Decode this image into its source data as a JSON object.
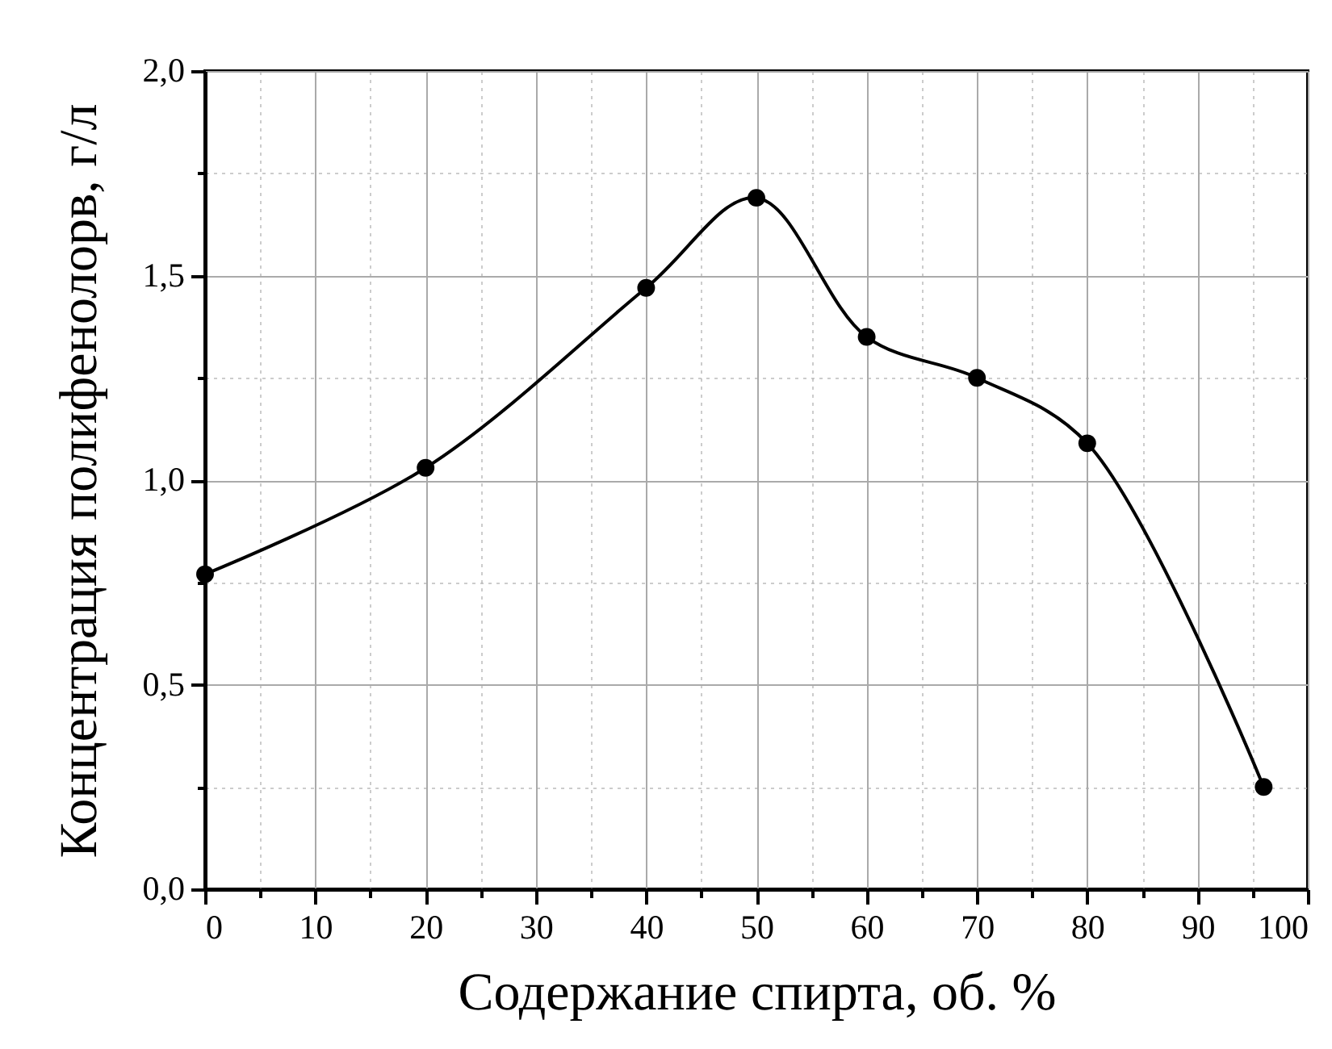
{
  "chart_data": {
    "type": "line",
    "xlabel": "Содержание спирта, об. %",
    "ylabel": "Концентрация полифенолорв, г/л",
    "x": [
      0,
      20,
      40,
      50,
      60,
      70,
      80,
      96
    ],
    "series": [
      {
        "color": "#000000",
        "values": [
          0.77,
          1.03,
          1.47,
          1.69,
          1.35,
          1.25,
          1.09,
          0.25
        ]
      }
    ],
    "xlim": [
      0,
      100
    ],
    "ylim": [
      0,
      2
    ],
    "xticks": [
      0,
      {
        "value": 5,
        "label": null
      },
      10,
      {
        "value": 15,
        "label": null
      },
      20,
      {
        "value": 25,
        "label": null
      },
      30,
      {
        "value": 35,
        "label": null
      },
      40,
      {
        "value": 45,
        "label": null
      },
      50,
      {
        "value": 55,
        "label": null
      },
      60,
      {
        "value": 65,
        "label": null
      },
      70,
      {
        "value": 75,
        "label": null
      },
      80,
      {
        "value": 85,
        "label": null
      },
      90,
      {
        "value": 95,
        "label": null
      },
      100
    ],
    "yticks": [
      {
        "value": 0,
        "label": "0,0"
      },
      {
        "value": 0.25,
        "label": null
      },
      {
        "value": 0.5,
        "label": "0,5"
      },
      {
        "value": 0.75,
        "label": null
      },
      {
        "value": 1,
        "label": "1,0"
      },
      {
        "value": 1.25,
        "label": null
      },
      {
        "value": 1.5,
        "label": "1,5"
      },
      {
        "value": 1.75,
        "label": null
      },
      {
        "value": 2,
        "label": "2,0"
      }
    ],
    "grid": true,
    "marker": "circle",
    "line_style": "solid"
  }
}
